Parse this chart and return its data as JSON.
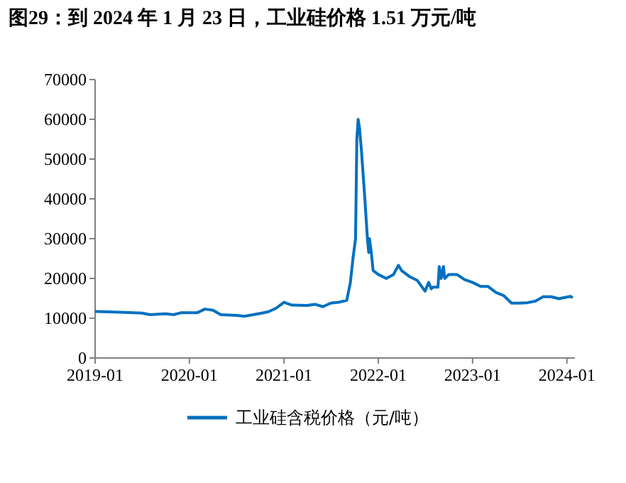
{
  "chart_data": {
    "type": "line",
    "title": "图29：到 2024 年 1 月 23 日，工业硅价格 1.51 万元/吨",
    "x": [
      "2019-01-01",
      "2019-04-01",
      "2019-07-01",
      "2019-08-01",
      "2019-10-01",
      "2019-11-01",
      "2019-12-01",
      "2020-02-01",
      "2020-03-01",
      "2020-04-01",
      "2020-05-01",
      "2020-07-01",
      "2020-08-01",
      "2020-10-01",
      "2020-11-01",
      "2020-12-01",
      "2021-01-01",
      "2021-02-01",
      "2021-04-01",
      "2021-05-01",
      "2021-06-01",
      "2021-07-01",
      "2021-08-01",
      "2021-09-01",
      "2021-09-15",
      "2021-09-25",
      "2021-10-05",
      "2021-10-10",
      "2021-10-15",
      "2021-10-20",
      "2021-10-28",
      "2021-11-10",
      "2021-11-20",
      "2021-11-25",
      "2021-11-28",
      "2021-12-05",
      "2021-12-12",
      "2022-01-01",
      "2022-02-01",
      "2022-03-01",
      "2022-03-20",
      "2022-04-01",
      "2022-05-01",
      "2022-06-01",
      "2022-07-01",
      "2022-07-15",
      "2022-07-25",
      "2022-08-01",
      "2022-08-20",
      "2022-08-25",
      "2022-09-01",
      "2022-09-10",
      "2022-09-15",
      "2022-10-01",
      "2022-11-01",
      "2022-12-01",
      "2023-01-01",
      "2023-02-01",
      "2023-03-01",
      "2023-04-01",
      "2023-05-01",
      "2023-06-01",
      "2023-07-01",
      "2023-08-01",
      "2023-09-01",
      "2023-10-01",
      "2023-11-01",
      "2023-12-01",
      "2024-01-01",
      "2024-01-15",
      "2024-01-23"
    ],
    "series": [
      {
        "name": "工业硅含税价格（元/吨）",
        "color": "#0070c0",
        "values": [
          11700,
          11500,
          11300,
          10900,
          11100,
          10900,
          11400,
          11400,
          12300,
          12000,
          10900,
          10700,
          10500,
          11200,
          11600,
          12500,
          14000,
          13300,
          13200,
          13500,
          12900,
          13800,
          14000,
          14500,
          19000,
          25000,
          30000,
          55000,
          60000,
          58000,
          52000,
          40000,
          30000,
          26500,
          30000,
          26500,
          22000,
          21000,
          20000,
          21000,
          23300,
          22000,
          20500,
          19500,
          16800,
          19000,
          17400,
          17800,
          17800,
          23000,
          20000,
          23000,
          20000,
          21000,
          21000,
          19700,
          19000,
          18000,
          18000,
          16500,
          15700,
          13800,
          13800,
          13900,
          14300,
          15400,
          15400,
          14900,
          15300,
          15500,
          15100
        ]
      }
    ],
    "xlim": [
      "2019-01-01",
      "2024-02-01"
    ],
    "xticks": [
      "2019-01",
      "2020-01",
      "2021-01",
      "2022-01",
      "2023-01",
      "2024-01"
    ],
    "ylim": [
      0,
      70000
    ],
    "yticks": [
      0,
      10000,
      20000,
      30000,
      40000,
      50000,
      60000,
      70000
    ],
    "grid": false,
    "legend": "bottom",
    "line_style": "solid",
    "marker": "none"
  }
}
